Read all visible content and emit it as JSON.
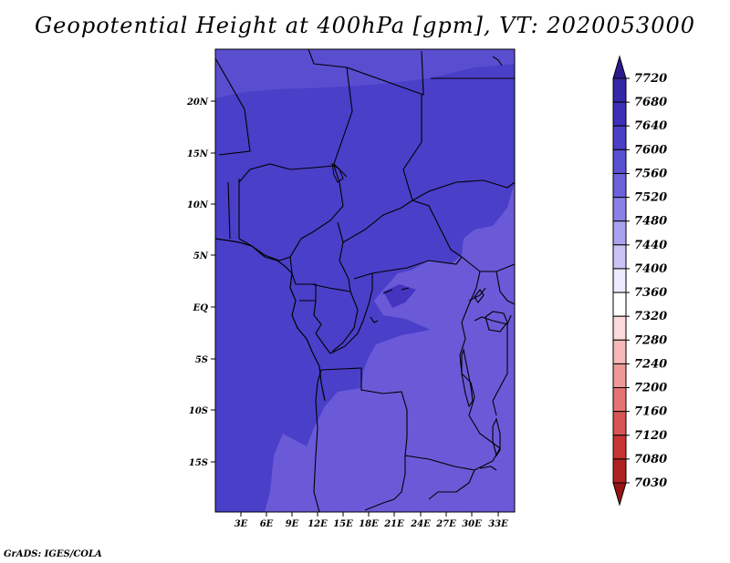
{
  "title": "Geopotential Height at 400hPa [gpm], VT: 2020053000",
  "credit": "GrADS: IGES/COLA",
  "map": {
    "lat_labels": [
      "20N",
      "15N",
      "10N",
      "5N",
      "EQ",
      "5S",
      "10S",
      "15S"
    ],
    "lon_labels": [
      "3E",
      "6E",
      "9E",
      "12E",
      "15E",
      "18E",
      "21E",
      "24E",
      "27E",
      "30E",
      "33E"
    ],
    "fill_colors": {
      "base": "#4a3fc8",
      "light": "#6a5ad8",
      "dark": "#4434c0"
    }
  },
  "colorbar": {
    "levels": [
      "7720",
      "7680",
      "7640",
      "7600",
      "7560",
      "7520",
      "7480",
      "7440",
      "7400",
      "7360",
      "7320",
      "7280",
      "7240",
      "7200",
      "7160",
      "7120",
      "7080",
      "7030"
    ],
    "colors": [
      "#2a1a8e",
      "#3428a8",
      "#3c30b8",
      "#4a40c6",
      "#5a50d2",
      "#6c62dc",
      "#8a80e6",
      "#aaa2ee",
      "#cac4f6",
      "#eceaff",
      "#ffffff",
      "#fadada",
      "#f6b8b8",
      "#ee9898",
      "#e47474",
      "#d85454",
      "#c83434",
      "#b02222",
      "#961414"
    ]
  }
}
